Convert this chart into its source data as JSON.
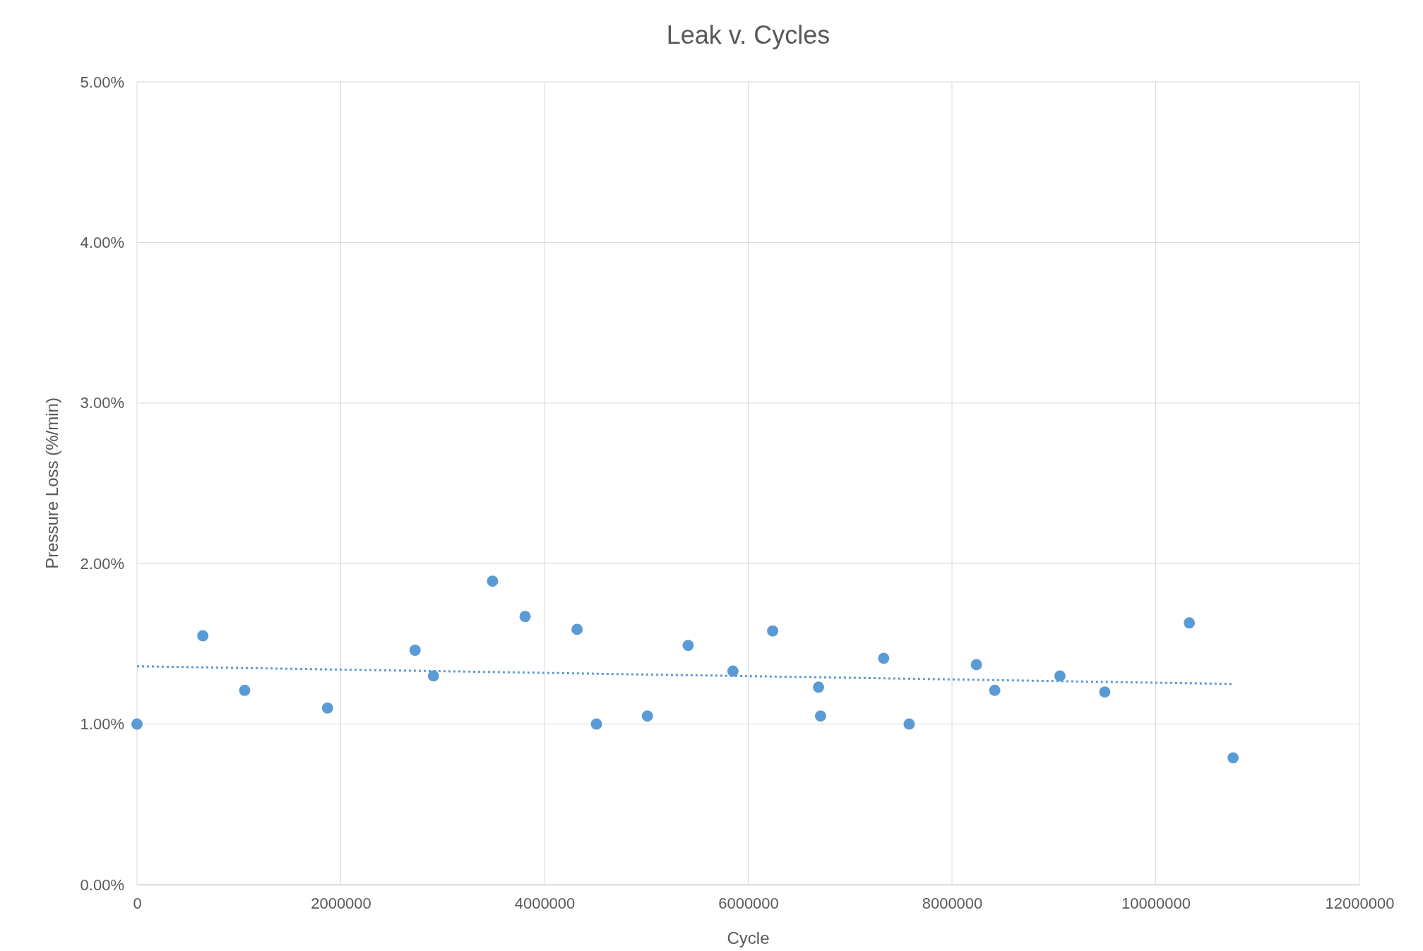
{
  "chart_data": {
    "type": "scatter",
    "title": "Leak v. Cycles",
    "xlabel": "Cycle",
    "ylabel": "Pressure Loss (%/min)",
    "xlim": [
      0,
      12000000
    ],
    "xticks": [
      0,
      2000000,
      4000000,
      6000000,
      8000000,
      10000000,
      12000000
    ],
    "ylim": [
      0,
      5
    ],
    "yticks": [
      {
        "value": 0,
        "label": "0.00%"
      },
      {
        "value": 1,
        "label": "1.00%"
      },
      {
        "value": 2,
        "label": "2.00%"
      },
      {
        "value": 3,
        "label": "3.00%"
      },
      {
        "value": 4,
        "label": "4.00%"
      },
      {
        "value": 5,
        "label": "5.00%"
      }
    ],
    "grid": true,
    "marker": "circle",
    "series": [
      {
        "type": "scatter",
        "color": "#5b9bd5",
        "x": [
          0,
          646000,
          1057000,
          1870000,
          2730000,
          2910000,
          3490000,
          3810000,
          4320000,
          4510000,
          5010000,
          5410000,
          5850000,
          6240000,
          6690000,
          6710000,
          7330000,
          7580000,
          8240000,
          8420000,
          9060000,
          9500000,
          10330000,
          10760000
        ],
        "values": [
          1.0,
          1.55,
          1.21,
          1.1,
          1.46,
          1.3,
          1.89,
          1.67,
          1.59,
          1.0,
          1.05,
          1.49,
          1.33,
          1.58,
          1.23,
          1.05,
          1.41,
          1.0,
          1.37,
          1.21,
          1.3,
          1.2,
          1.63,
          0.79
        ]
      },
      {
        "type": "line",
        "color": "#5b9bd5",
        "line_style": "dotted",
        "marker": "none",
        "x": [
          0,
          10760000
        ],
        "values": [
          1.36,
          1.25
        ]
      }
    ]
  }
}
